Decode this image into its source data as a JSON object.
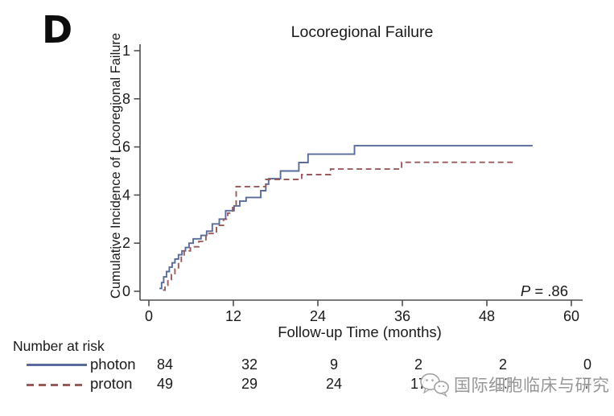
{
  "panel_label": "D",
  "chart": {
    "title": "Locoregional Failure",
    "y_axis_label": "Cumulative Incidence of Locoregional Failure",
    "x_axis_label": "Follow-up Time (months)",
    "p_value_prefix": "P",
    "p_value_rest": " = .86",
    "colors": {
      "photon": "#586b9b",
      "proton": "#9a5a5a",
      "axis": "#4f4f4f"
    }
  },
  "chart_data": {
    "type": "line",
    "subtype": "step-function-cumulative-incidence",
    "title": "Locoregional Failure",
    "xlabel": "Follow-up Time (months)",
    "ylabel": "Cumulative Incidence of Locoregional Failure",
    "xlim": [
      0,
      60
    ],
    "ylim": [
      0,
      1
    ],
    "x_ticks": [
      0,
      12,
      24,
      36,
      48,
      60
    ],
    "y_ticks": [
      0,
      0.2,
      0.4,
      0.6,
      0.8,
      1
    ],
    "y_tick_labels": [
      "0",
      ".2",
      ".4",
      ".6",
      ".8",
      "1"
    ],
    "annotation": "P = .86",
    "grid": false,
    "legend_position": "bottom-left number-at-risk table",
    "series": [
      {
        "name": "photon",
        "style": "solid",
        "color": "#586b9b",
        "points": [
          [
            1.5,
            0.012
          ],
          [
            1.8,
            0.036
          ],
          [
            2.1,
            0.06
          ],
          [
            2.5,
            0.082
          ],
          [
            2.9,
            0.1
          ],
          [
            3.3,
            0.118
          ],
          [
            3.7,
            0.134
          ],
          [
            4.2,
            0.152
          ],
          [
            4.7,
            0.168
          ],
          [
            5.2,
            0.182
          ],
          [
            5.7,
            0.2
          ],
          [
            6.3,
            0.218
          ],
          [
            7.4,
            0.232
          ],
          [
            8.2,
            0.25
          ],
          [
            9.0,
            0.28
          ],
          [
            10.0,
            0.3
          ],
          [
            10.9,
            0.335
          ],
          [
            12.1,
            0.355
          ],
          [
            12.9,
            0.375
          ],
          [
            13.8,
            0.39
          ],
          [
            15.9,
            0.418
          ],
          [
            16.6,
            0.445
          ],
          [
            17.0,
            0.468
          ],
          [
            18.7,
            0.5
          ],
          [
            21.3,
            0.535
          ],
          [
            22.6,
            0.57
          ],
          [
            29.2,
            0.605
          ],
          [
            54.5,
            0.605
          ]
        ]
      },
      {
        "name": "proton",
        "style": "dashed",
        "color": "#9a5a5a",
        "points": [
          [
            2.0,
            0.005
          ],
          [
            2.3,
            0.025
          ],
          [
            2.7,
            0.048
          ],
          [
            3.2,
            0.07
          ],
          [
            3.7,
            0.092
          ],
          [
            4.2,
            0.118
          ],
          [
            4.6,
            0.145
          ],
          [
            5.0,
            0.168
          ],
          [
            5.9,
            0.185
          ],
          [
            7.1,
            0.207
          ],
          [
            8.1,
            0.24
          ],
          [
            9.6,
            0.274
          ],
          [
            10.6,
            0.3
          ],
          [
            11.2,
            0.325
          ],
          [
            11.9,
            0.348
          ],
          [
            12.4,
            0.435
          ],
          [
            16.6,
            0.465
          ],
          [
            21.7,
            0.485
          ],
          [
            25.8,
            0.508
          ],
          [
            35.9,
            0.536
          ],
          [
            51.8,
            0.536
          ]
        ]
      }
    ]
  },
  "risk_table": {
    "heading": "Number at risk",
    "time_points": [
      0,
      12,
      24,
      36,
      48,
      60
    ],
    "rows": [
      {
        "label": "photon",
        "line_style": "solid",
        "values": [
          "84",
          "32",
          "9",
          "2",
          "2",
          "0"
        ]
      },
      {
        "label": "proton",
        "line_style": "dashed",
        "values": [
          "49",
          "29",
          "24",
          "17",
          "10",
          "7"
        ]
      }
    ]
  },
  "watermark": {
    "icon": "wechat-chat-bubbles-icon",
    "text": "国际细胞临床与研究"
  }
}
